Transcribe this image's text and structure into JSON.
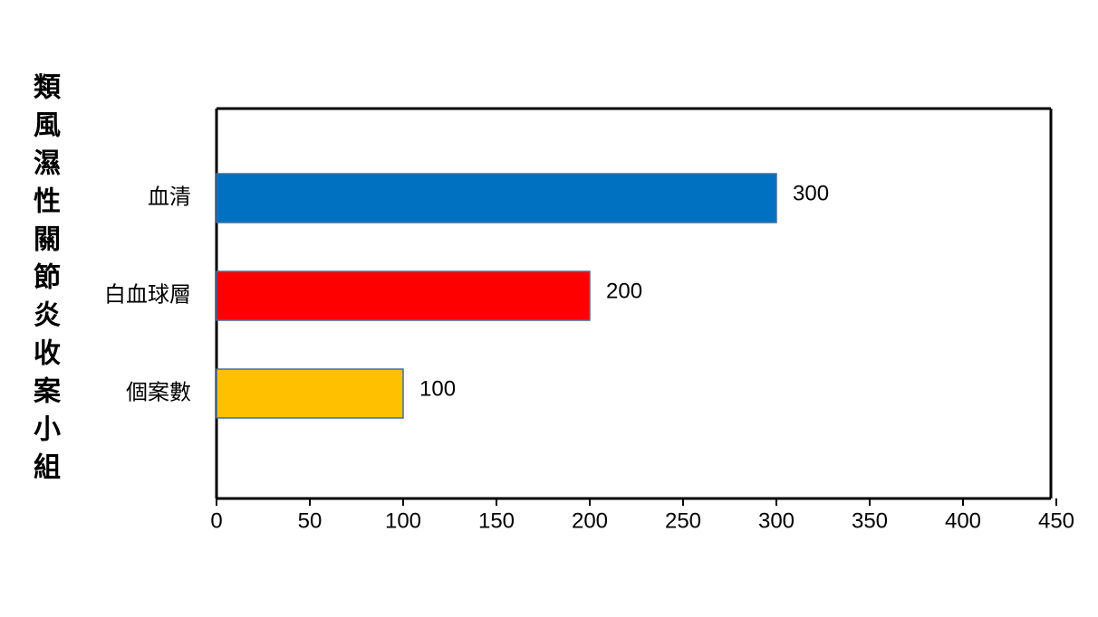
{
  "chart_data": {
    "type": "barh",
    "title": "類風濕性關節炎收案小組",
    "categories": [
      "血清",
      "白血球層",
      "個案數"
    ],
    "values": [
      300,
      200,
      100
    ],
    "colors": [
      "#0070c0",
      "#ff0000",
      "#ffc000"
    ],
    "xlim": [
      0,
      450
    ],
    "xticks": [
      0,
      50,
      100,
      150,
      200,
      250,
      300,
      350,
      400,
      450
    ]
  }
}
